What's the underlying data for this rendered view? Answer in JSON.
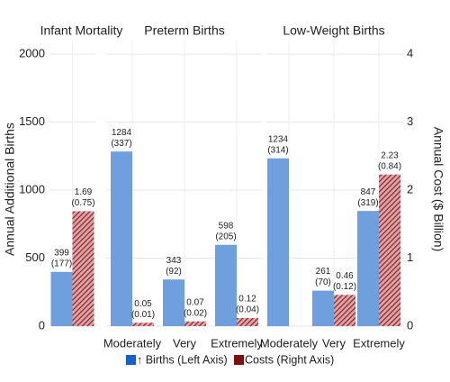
{
  "chart_data": {
    "type": "bar",
    "ylabel": "Annual Additional Births",
    "y2label": "Annual Cost ($ Billion)",
    "ylim": [
      0,
      2100
    ],
    "yticks": [
      0,
      500,
      1000,
      1500,
      2000
    ],
    "y2lim": [
      0,
      4.2
    ],
    "y2ticks": [
      0,
      1,
      2,
      3,
      4
    ],
    "grid": true,
    "facets": [
      {
        "title": "Infant Mortality",
        "categories": [
          null
        ]
      },
      {
        "title": "Preterm Births",
        "categories": [
          "Moderately",
          "Very",
          "Extremely"
        ]
      },
      {
        "title": "Low-Weight Births",
        "categories": [
          "Moderately",
          "Very",
          "Extremely"
        ]
      }
    ],
    "series": [
      {
        "name": "↑ Births (Left Axis)",
        "color": "#6f9fdc",
        "values": [
          399,
          1284,
          343,
          598,
          1234,
          261,
          847
        ],
        "errors": [
          177,
          337,
          92,
          205,
          314,
          70,
          319
        ],
        "error_labels": [
          "(177)",
          "(337)",
          "(92)",
          "(205)",
          "(314)",
          "(70)",
          "(319)"
        ]
      },
      {
        "name": "Costs (Right Axis)",
        "color": "#8b1a1a",
        "axis": "y2",
        "hatch": true,
        "values": [
          1.69,
          0.05,
          0.07,
          0.12,
          null,
          0.46,
          2.23
        ],
        "errors": [
          0.75,
          0.01,
          0.02,
          0.04,
          null,
          0.12,
          0.84
        ],
        "error_labels": [
          "(0.75)",
          "(0.01)",
          "(0.02)",
          "(0.04)",
          null,
          "(0.12)",
          "(0.84)"
        ]
      }
    ]
  }
}
